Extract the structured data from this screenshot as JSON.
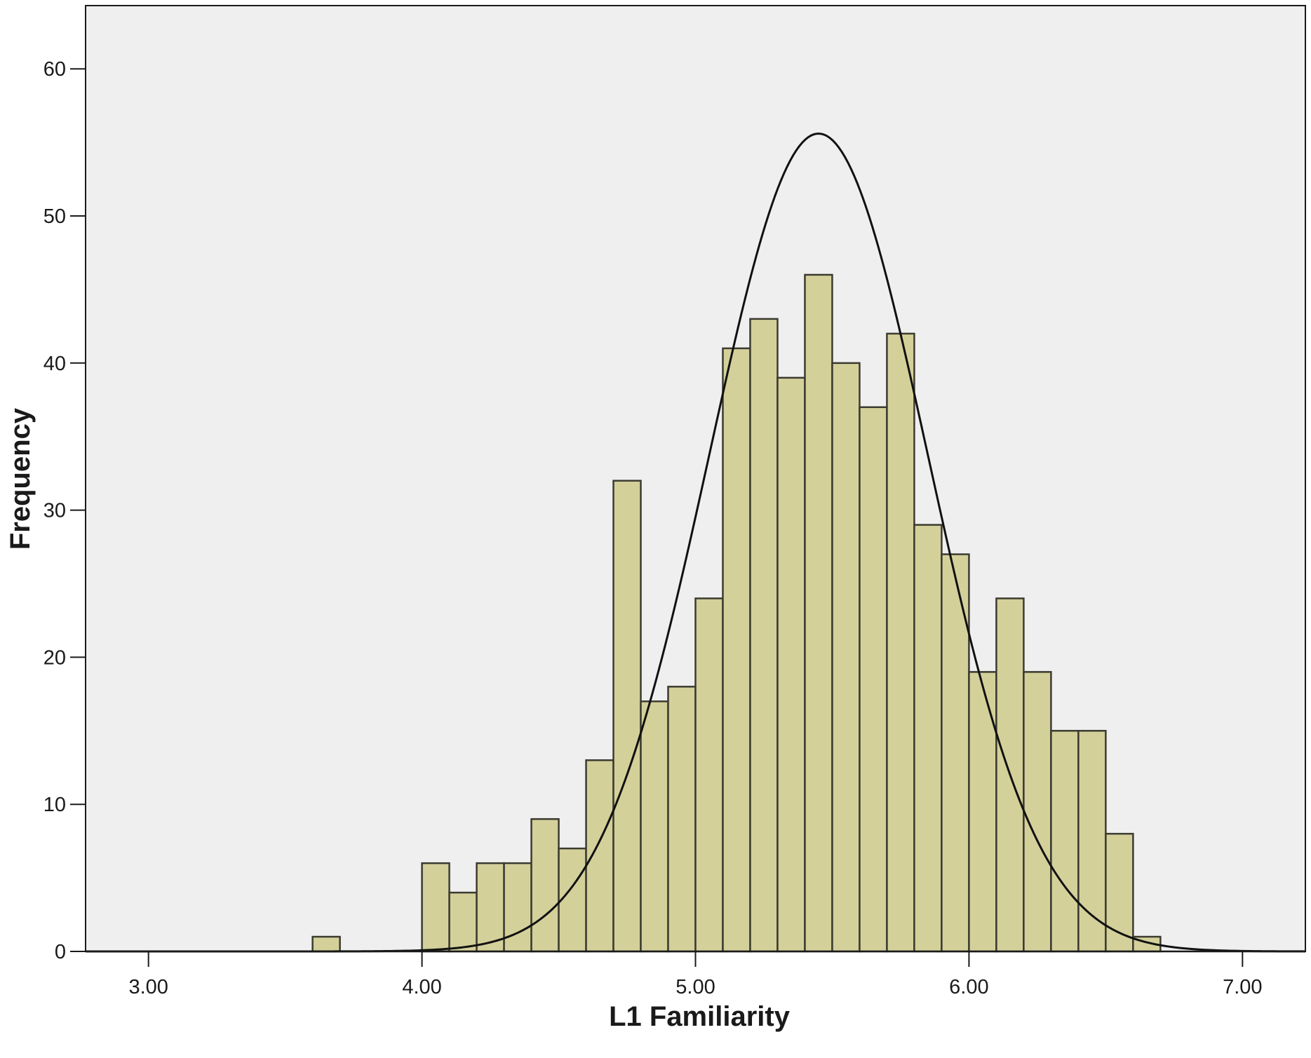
{
  "chart_data": {
    "type": "bar",
    "subtype": "histogram",
    "title": "",
    "xlabel": "L1 Familiarity",
    "ylabel": "Frequency",
    "xlim": [
      2.77,
      7.23
    ],
    "ylim": [
      0,
      64.3
    ],
    "xticks": [
      3.0,
      4.0,
      5.0,
      6.0,
      7.0
    ],
    "xtick_labels": [
      "3.00",
      "4.00",
      "5.00",
      "6.00",
      "7.00"
    ],
    "yticks": [
      0,
      10,
      20,
      30,
      40,
      50,
      60
    ],
    "ytick_labels": [
      "0",
      "10",
      "20",
      "30",
      "40",
      "50",
      "60"
    ],
    "bin_width": 0.1,
    "bins": [
      {
        "start": 3.6,
        "count": 1
      },
      {
        "start": 4.0,
        "count": 6
      },
      {
        "start": 4.1,
        "count": 4
      },
      {
        "start": 4.2,
        "count": 6
      },
      {
        "start": 4.3,
        "count": 6
      },
      {
        "start": 4.4,
        "count": 9
      },
      {
        "start": 4.5,
        "count": 7
      },
      {
        "start": 4.6,
        "count": 13
      },
      {
        "start": 4.7,
        "count": 32
      },
      {
        "start": 4.8,
        "count": 17
      },
      {
        "start": 4.9,
        "count": 18
      },
      {
        "start": 5.0,
        "count": 24
      },
      {
        "start": 5.1,
        "count": 41
      },
      {
        "start": 5.2,
        "count": 43
      },
      {
        "start": 5.3,
        "count": 39
      },
      {
        "start": 5.4,
        "count": 46
      },
      {
        "start": 5.5,
        "count": 40
      },
      {
        "start": 5.6,
        "count": 37
      },
      {
        "start": 5.7,
        "count": 42
      },
      {
        "start": 5.8,
        "count": 29
      },
      {
        "start": 5.9,
        "count": 27
      },
      {
        "start": 6.0,
        "count": 19
      },
      {
        "start": 6.1,
        "count": 24
      },
      {
        "start": 6.2,
        "count": 19
      },
      {
        "start": 6.3,
        "count": 15
      },
      {
        "start": 6.4,
        "count": 15
      },
      {
        "start": 6.5,
        "count": 8
      },
      {
        "start": 6.6,
        "count": 1
      }
    ],
    "normal_curve": {
      "mean": 5.45,
      "sd": 0.4,
      "peak": 55.6
    },
    "grid": false,
    "colors": {
      "bar_fill": "#d4d09a",
      "bar_edge": "#3b3b30",
      "plot_background": "#efeff0",
      "curve": "#111111",
      "axis": "#1a1a1a"
    }
  }
}
